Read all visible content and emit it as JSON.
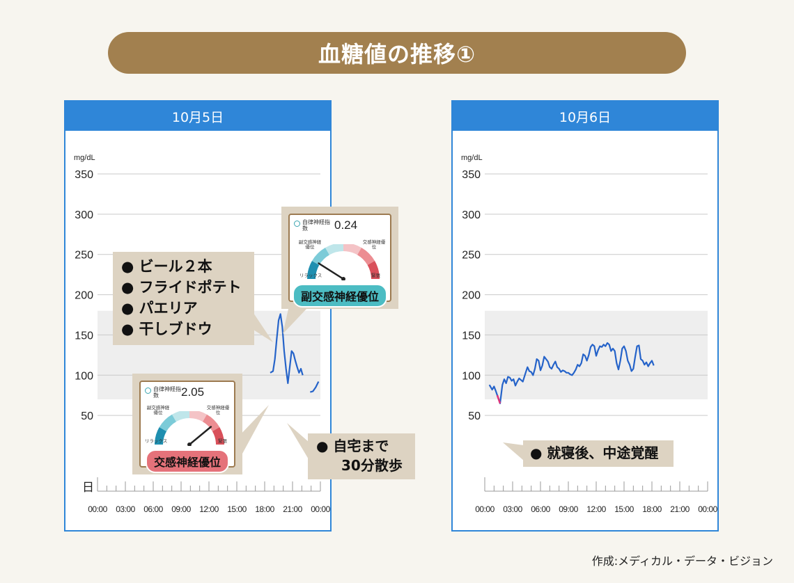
{
  "title": "血糖値の推移①",
  "credit": "作成:メディカル・データ・ビジョン",
  "colors": {
    "title_bg": "#a2804f",
    "panel_header": "#2f86d8",
    "line": "#2563c9",
    "low_line": "#e0357a",
    "target_band": "#eeeeee",
    "note_bg": "#ddd3c2"
  },
  "panels": [
    {
      "date": "10月5日",
      "unit": "mg/dL",
      "day_label": "日",
      "annotations": {
        "food_list": [
          "● ビール２本",
          "● フライドポテト",
          "● パエリア",
          "● 干しブドウ"
        ],
        "walk": [
          "● 自宅まで",
          "30分散歩"
        ]
      },
      "gauges": [
        {
          "header": "自律神経指数",
          "value": "0.24",
          "left_label": "副交感神経優位",
          "right_label": "交感神経優位",
          "relax": "リラックス",
          "tense": "緊張",
          "badge": "副交感神経優位",
          "needle_fraction": 0.18,
          "badge_color": "#4cbcc3"
        },
        {
          "header": "自律神経指数",
          "value": "2.05",
          "left_label": "副交感神経優位",
          "right_label": "交感神経優位",
          "relax": "リラックス",
          "tense": "緊張",
          "badge": "交感神経優位",
          "needle_fraction": 0.78,
          "badge_color": "#e5727a"
        }
      ]
    },
    {
      "date": "10月6日",
      "unit": "mg/dL",
      "annotations": {
        "note": "● 就寝後、中途覚醒"
      }
    }
  ],
  "chart_data": [
    {
      "type": "line",
      "title": "10月5日",
      "ylabel": "mg/dL",
      "ylim": [
        0,
        350
      ],
      "yticks": [
        50,
        100,
        150,
        200,
        250,
        300,
        350
      ],
      "xticks": [
        "00:00",
        "03:00",
        "06:00",
        "09:00",
        "12:00",
        "15:00",
        "18:00",
        "21:00",
        "00:00"
      ],
      "target_band": [
        70,
        180
      ],
      "grid": true,
      "series": [
        {
          "segments": [
            [
              [
                18.6,
                103
              ],
              [
                18.9,
                105
              ],
              [
                19.1,
                120
              ],
              [
                19.3,
                145
              ],
              [
                19.5,
                168
              ],
              [
                19.7,
                176
              ],
              [
                19.9,
                160
              ],
              [
                20.1,
                130
              ],
              [
                20.3,
                108
              ],
              [
                20.5,
                90
              ],
              [
                20.7,
                110
              ],
              [
                20.9,
                130
              ],
              [
                21.1,
                127
              ],
              [
                21.3,
                118
              ],
              [
                21.5,
                110
              ],
              [
                21.7,
                103
              ],
              [
                21.9,
                108
              ],
              [
                22.1,
                100
              ]
            ],
            [
              [
                22.9,
                79
              ],
              [
                23.2,
                80
              ],
              [
                23.5,
                85
              ],
              [
                23.8,
                92
              ]
            ]
          ]
        }
      ]
    },
    {
      "type": "line",
      "title": "10月6日",
      "ylabel": "mg/dL",
      "ylim": [
        0,
        350
      ],
      "yticks": [
        50,
        100,
        150,
        200,
        250,
        300,
        350
      ],
      "xticks": [
        "00:00",
        "03:00",
        "06:00",
        "09:00",
        "12:00",
        "15:00",
        "18:00",
        "21:00",
        "00:00"
      ],
      "target_band": [
        70,
        180
      ],
      "grid": true,
      "series": [
        {
          "low_segment": [
            [
              1.35,
              75
            ],
            [
              1.5,
              70
            ],
            [
              1.65,
              65
            ]
          ],
          "values": [
            [
              0.5,
              88
            ],
            [
              0.8,
              82
            ],
            [
              1.0,
              86
            ],
            [
              1.2,
              80
            ],
            [
              1.35,
              75
            ],
            [
              1.65,
              65
            ],
            [
              1.9,
              88
            ],
            [
              2.1,
              95
            ],
            [
              2.3,
              90
            ],
            [
              2.5,
              98
            ],
            [
              2.7,
              97
            ],
            [
              2.9,
              93
            ],
            [
              3.1,
              95
            ],
            [
              3.3,
              87
            ],
            [
              3.5,
              92
            ],
            [
              3.7,
              96
            ],
            [
              3.9,
              94
            ],
            [
              4.1,
              92
            ],
            [
              4.4,
              103
            ],
            [
              4.6,
              110
            ],
            [
              4.8,
              105
            ],
            [
              5.0,
              104
            ],
            [
              5.2,
              100
            ],
            [
              5.4,
              108
            ],
            [
              5.6,
              120
            ],
            [
              5.8,
              118
            ],
            [
              6.0,
              106
            ],
            [
              6.2,
              112
            ],
            [
              6.4,
              123
            ],
            [
              6.6,
              120
            ],
            [
              6.8,
              117
            ],
            [
              7.0,
              110
            ],
            [
              7.2,
              108
            ],
            [
              7.4,
              113
            ],
            [
              7.6,
              117
            ],
            [
              7.8,
              110
            ],
            [
              8.0,
              108
            ],
            [
              8.2,
              104
            ],
            [
              8.4,
              106
            ],
            [
              8.6,
              105
            ],
            [
              8.8,
              103
            ],
            [
              9.0,
              103
            ],
            [
              9.2,
              101
            ],
            [
              9.4,
              100
            ],
            [
              9.6,
              103
            ],
            [
              9.8,
              107
            ],
            [
              10.0,
              113
            ],
            [
              10.2,
              111
            ],
            [
              10.4,
              115
            ],
            [
              10.6,
              126
            ],
            [
              10.8,
              124
            ],
            [
              11.0,
              118
            ],
            [
              11.2,
              125
            ],
            [
              11.4,
              135
            ],
            [
              11.6,
              138
            ],
            [
              11.8,
              136
            ],
            [
              12.0,
              124
            ],
            [
              12.2,
              131
            ],
            [
              12.4,
              136
            ],
            [
              12.6,
              135
            ],
            [
              12.8,
              138
            ],
            [
              13.0,
              136
            ],
            [
              13.2,
              140
            ],
            [
              13.4,
              138
            ],
            [
              13.6,
              130
            ],
            [
              13.8,
              133
            ],
            [
              14.0,
              130
            ],
            [
              14.2,
              115
            ],
            [
              14.4,
              107
            ],
            [
              14.6,
              118
            ],
            [
              14.8,
              133
            ],
            [
              15.0,
              136
            ],
            [
              15.2,
              130
            ],
            [
              15.4,
              118
            ],
            [
              15.6,
              113
            ],
            [
              15.8,
              105
            ],
            [
              16.0,
              108
            ],
            [
              16.2,
              123
            ],
            [
              16.4,
              136
            ],
            [
              16.6,
              137
            ],
            [
              16.8,
              120
            ],
            [
              17.0,
              118
            ],
            [
              17.2,
              113
            ],
            [
              17.4,
              116
            ],
            [
              17.6,
              111
            ],
            [
              17.8,
              115
            ],
            [
              18.0,
              118
            ],
            [
              18.2,
              112
            ]
          ]
        }
      ]
    }
  ]
}
